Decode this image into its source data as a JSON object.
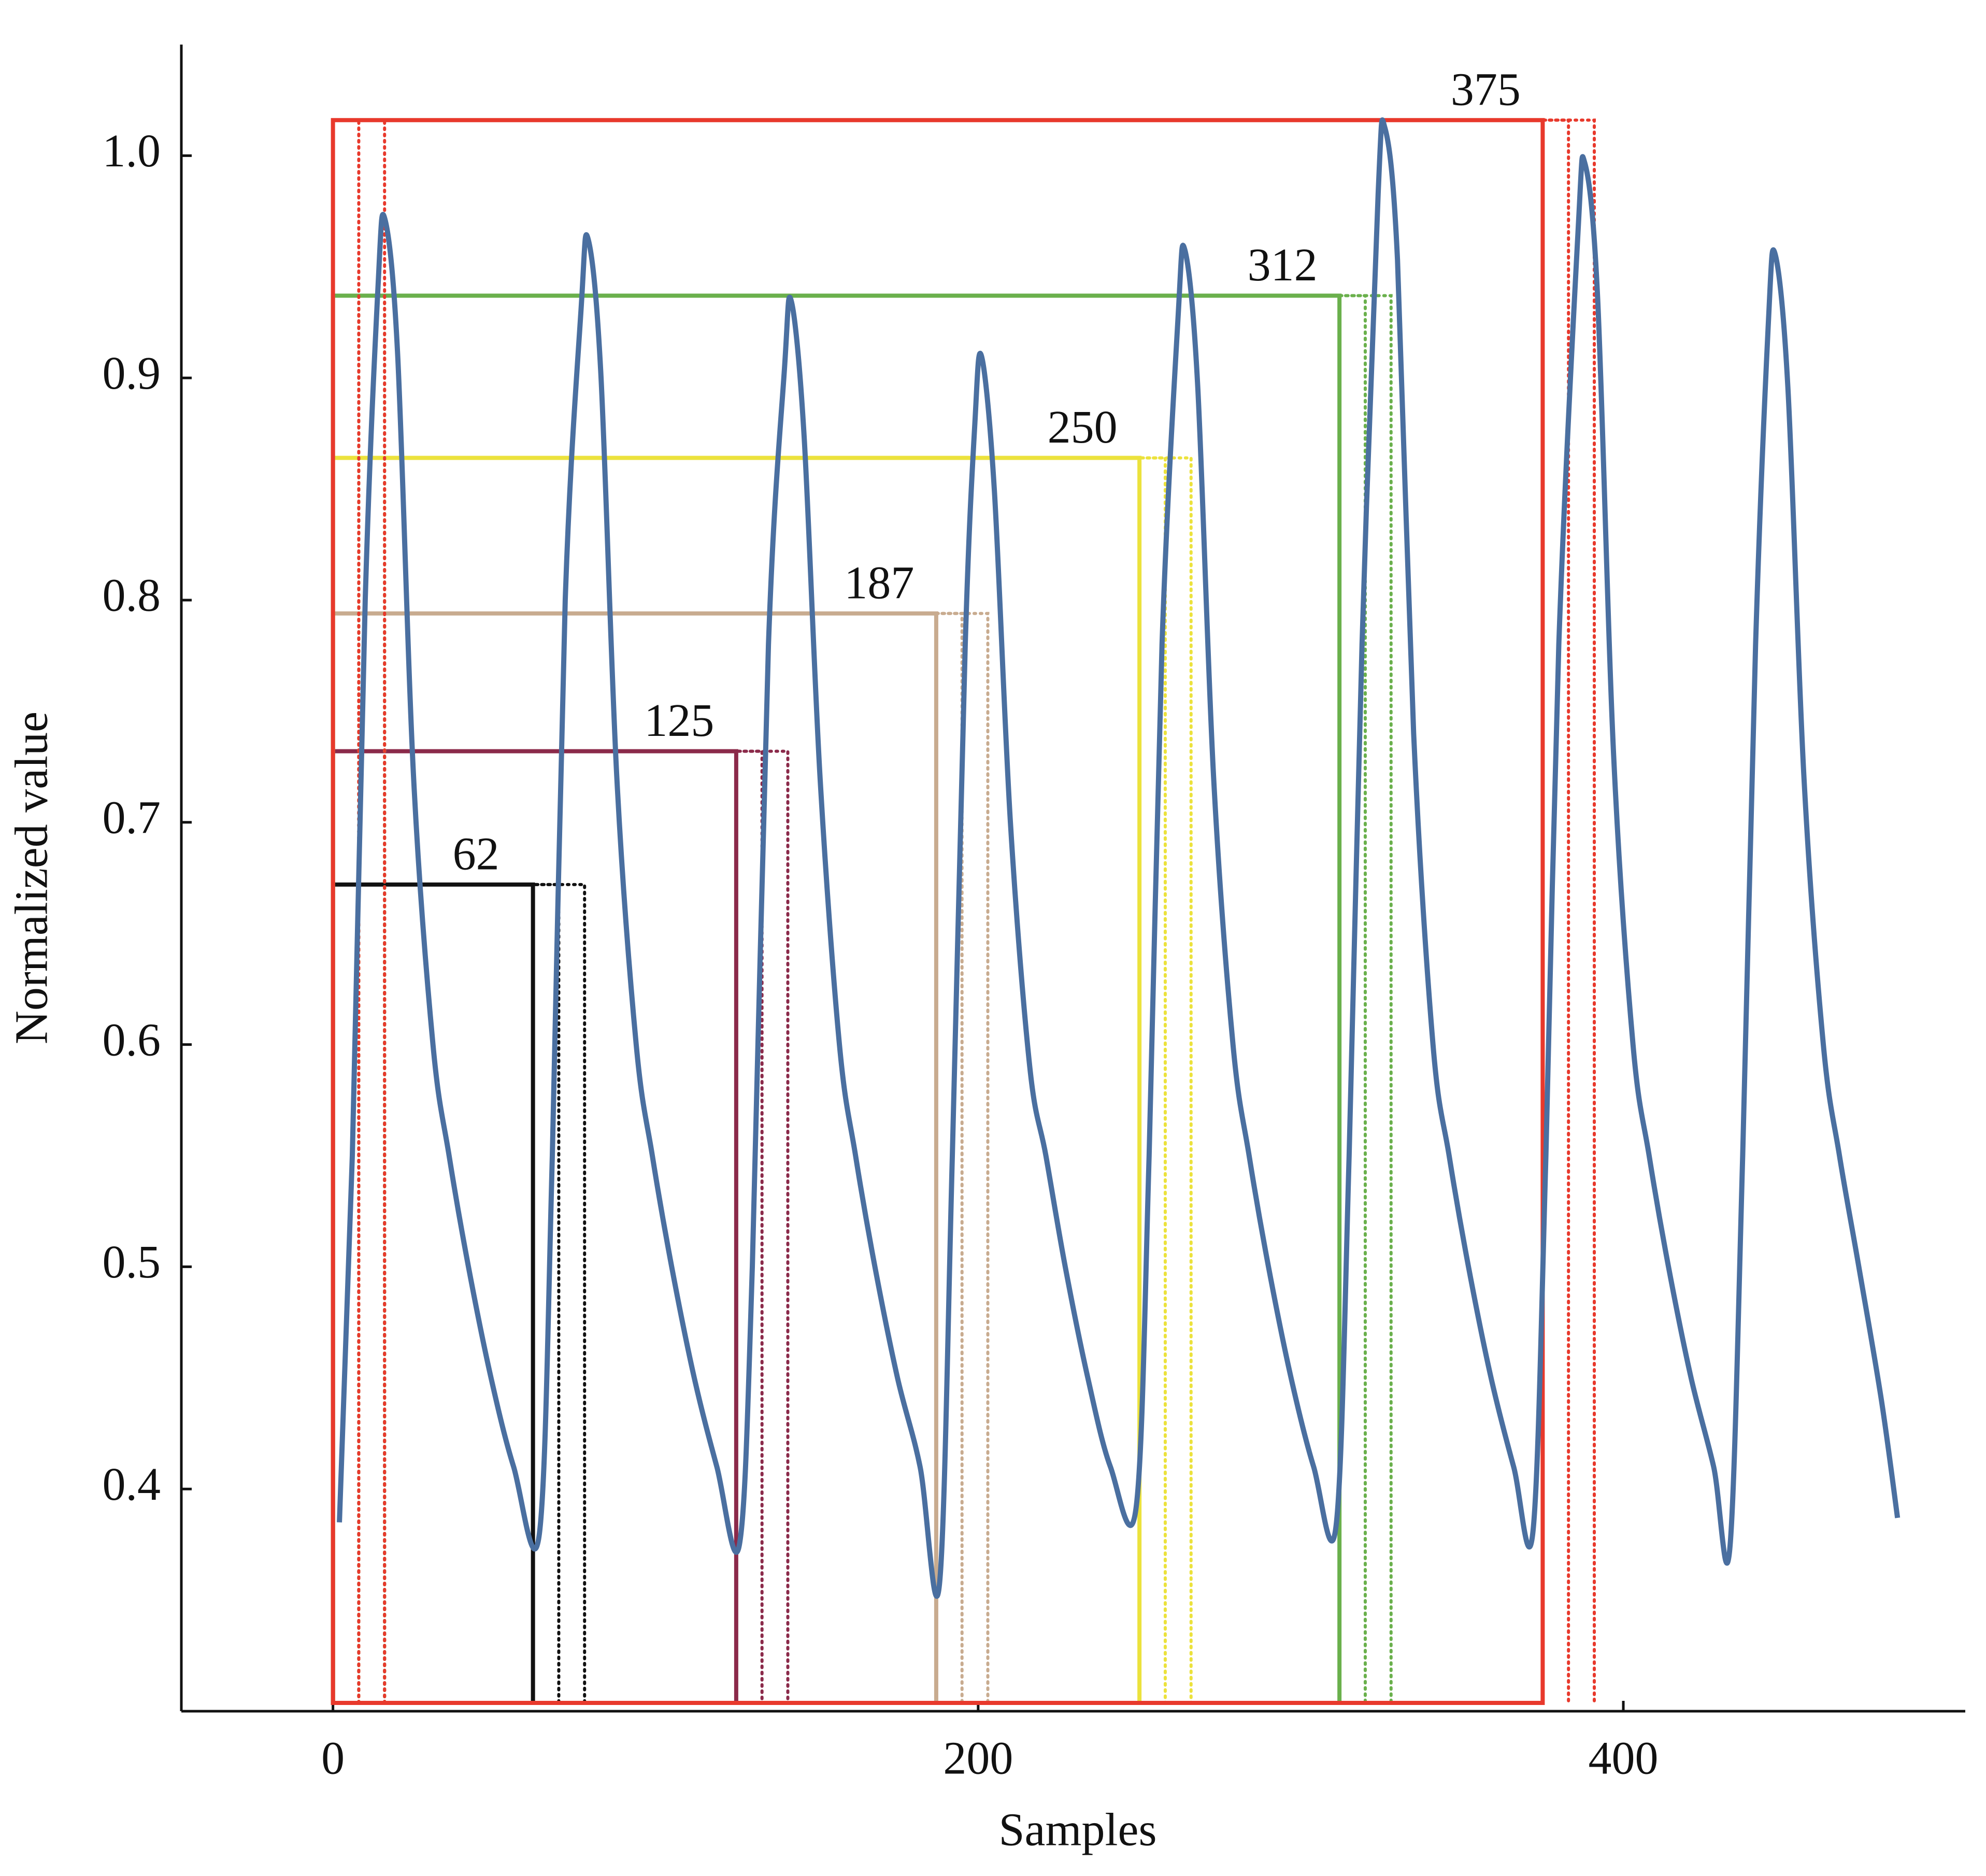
{
  "chart_data": {
    "type": "line",
    "xlabel": "Samples",
    "ylabel": "Normalized value",
    "xlim": [
      -47,
      506
    ],
    "ylim": [
      0.3,
      1.05
    ],
    "xticks": [
      0,
      200,
      400
    ],
    "yticks": [
      0.4,
      0.5,
      0.6,
      0.7,
      0.8,
      0.9,
      {
        "value": 1,
        "label": "1.0"
      }
    ],
    "color": "#4a6fa0",
    "x": [
      2,
      6,
      10,
      14,
      16,
      20,
      25,
      31,
      36,
      42,
      49,
      56,
      64,
      68,
      72,
      77,
      79,
      83,
      88,
      94,
      99,
      105,
      112,
      119,
      126,
      130,
      135,
      140,
      142,
      146,
      151,
      157,
      162,
      168,
      175,
      182,
      188,
      192,
      196,
      199,
      201,
      205,
      210,
      216,
      221,
      227,
      234,
      241,
      249,
      253,
      257,
      262,
      264,
      268,
      273,
      279,
      284,
      290,
      297,
      304,
      311,
      315,
      319,
      324,
      326,
      330,
      335,
      341,
      346,
      352,
      359,
      366,
      372,
      376,
      380,
      386,
      388,
      392,
      397,
      403,
      408,
      414,
      421,
      428,
      433,
      437,
      441,
      445,
      447,
      451,
      456,
      462,
      467,
      473,
      480,
      485
    ],
    "values": [
      0.385,
      0.55,
      0.8,
      0.942,
      0.972,
      0.912,
      0.72,
      0.6,
      0.55,
      0.5,
      0.45,
      0.41,
      0.38,
      0.55,
      0.8,
      0.933,
      0.963,
      0.903,
      0.72,
      0.6,
      0.55,
      0.5,
      0.45,
      0.41,
      0.375,
      0.5,
      0.78,
      0.905,
      0.935,
      0.875,
      0.72,
      0.6,
      0.55,
      0.5,
      0.45,
      0.41,
      0.357,
      0.55,
      0.78,
      0.88,
      0.91,
      0.85,
      0.7,
      0.59,
      0.55,
      0.5,
      0.45,
      0.41,
      0.392,
      0.55,
      0.78,
      0.928,
      0.958,
      0.898,
      0.72,
      0.6,
      0.55,
      0.5,
      0.45,
      0.41,
      0.384,
      0.55,
      0.78,
      0.983,
      1.013,
      0.953,
      0.74,
      0.6,
      0.55,
      0.5,
      0.45,
      0.41,
      0.381,
      0.55,
      0.78,
      0.967,
      0.997,
      0.937,
      0.73,
      0.6,
      0.55,
      0.5,
      0.45,
      0.41,
      0.373,
      0.55,
      0.78,
      0.926,
      0.956,
      0.896,
      0.72,
      0.6,
      0.55,
      0.5,
      0.44,
      0.387
    ],
    "shifts": [
      8,
      16
    ],
    "windows": [
      {
        "size": 62,
        "top": 0.672,
        "color": "#111111"
      },
      {
        "size": 125,
        "top": 0.732,
        "color": "#8b2a4a"
      },
      {
        "size": 187,
        "top": 0.794,
        "color": "#c8ab8f"
      },
      {
        "size": 250,
        "top": 0.864,
        "color": "#ece23c"
      },
      {
        "size": 312,
        "top": 0.937,
        "color": "#6ab04c"
      },
      {
        "size": 375,
        "top": 1.016,
        "color": "#e8392c"
      }
    ]
  }
}
